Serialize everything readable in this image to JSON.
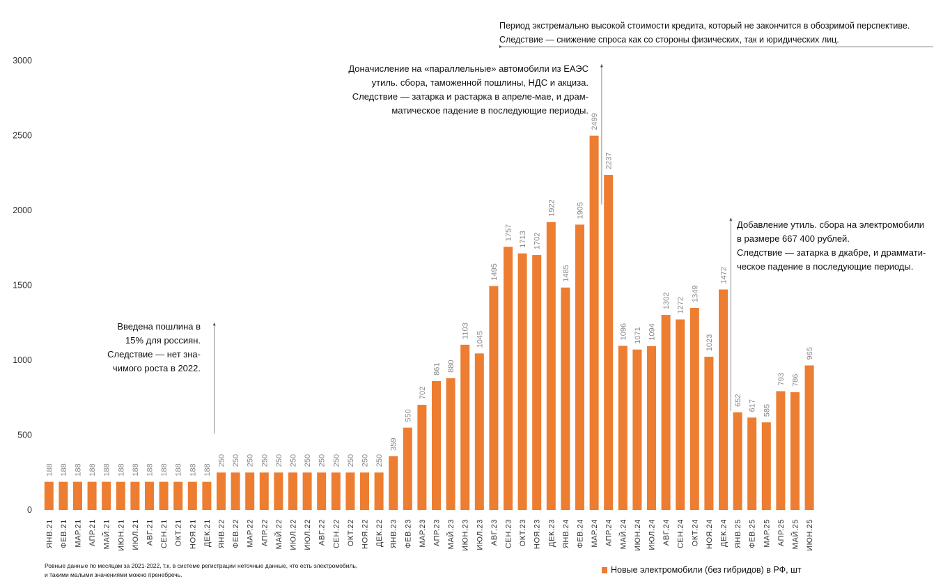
{
  "chart_data": {
    "type": "bar",
    "title": "",
    "xlabel": "",
    "ylabel": "",
    "ylim": [
      0,
      3000
    ],
    "yticks": [
      0,
      500,
      1000,
      1500,
      2000,
      2500,
      3000
    ],
    "grid": false,
    "bar_color": "#ED7D31",
    "categories": [
      "ЯНВ.21",
      "ФЕВ.21",
      "МАР.21",
      "АПР.21",
      "МАЙ.21",
      "ИЮН.21",
      "ИЮЛ.21",
      "АВГ.21",
      "СЕН.21",
      "ОКТ.21",
      "НОЯ.21",
      "ДЕК.21",
      "ЯНВ.22",
      "ФЕВ.22",
      "МАР.22",
      "АПР.22",
      "МАЙ.22",
      "ИЮЛ.22",
      "ИЮЛ.22",
      "АВГ.22",
      "СЕН.22",
      "ОКТ.22",
      "НОЯ.22",
      "ДЕК.22",
      "ЯНВ.23",
      "ФЕВ.23",
      "МАР.23",
      "АПР.23",
      "МАЙ.23",
      "ИЮН.23",
      "ИЮЛ.23",
      "АВГ.23",
      "СЕН.23",
      "ОКТ.23",
      "НОЯ.23",
      "ДЕК.23",
      "ЯНВ.24",
      "ФЕВ.24",
      "МАР.24",
      "АПР.24",
      "МАЙ.24",
      "ИЮН.24",
      "ИЮЛ.24",
      "АВГ.24",
      "СЕН.24",
      "ОКТ.24",
      "НОЯ.24",
      "ДЕК.24",
      "ЯНВ.25",
      "ФЕВ.25",
      "МАР.25",
      "АПР.25",
      "МАЙ.25",
      "ИЮН.25"
    ],
    "series": [
      {
        "name": "Новые электромобили (без гибридов) в РФ, шт",
        "values": [
          188,
          188,
          188,
          188,
          188,
          188,
          188,
          188,
          188,
          188,
          188,
          188,
          250,
          250,
          250,
          250,
          250,
          250,
          250,
          250,
          250,
          250,
          250,
          250,
          359,
          550,
          702,
          861,
          880,
          1103,
          1045,
          1495,
          1757,
          1713,
          1702,
          1922,
          1485,
          1905,
          2499,
          2237,
          1096,
          1071,
          1094,
          1302,
          1272,
          1349,
          1023,
          1472,
          652,
          617,
          585,
          793,
          786,
          965
        ]
      }
    ],
    "legend": "bottom-right",
    "annotations": [
      {
        "id": "a2022",
        "lines": [
          "Введена пошлина в",
          "15% для россиян.",
          "Следствие  — нет зна-",
          "чимого роста в 2022."
        ],
        "at_category_index": 11,
        "from_value": 510,
        "to_value": 1250
      },
      {
        "id": "a2024",
        "lines": [
          "Доначисление на «параллельные» автомобили из ЕАЭС",
          "утиль. сбора, таможенной пошлины, НДС и акциза.",
          "Следствие — затарка и растарка в апреле-мае, и драм-",
          "матическое падение в последующие периоды."
        ],
        "at_category_index": 38,
        "from_value": 2040,
        "to_value": 2975
      },
      {
        "id": "a2025",
        "lines": [
          "Добавление утиль. сбора на электромобили",
          "в размере 667 400 рублей.",
          "Следствие — затарка в дкабре, и драммати-",
          "ческое падение в последующие периоды."
        ],
        "at_category_index": 47,
        "from_value": 660,
        "to_value": 1950
      },
      {
        "id": "atop",
        "lines": [
          "Период экстремально высокой стоимости кредита, который не закончится в обозримой перспективе.",
          "Следствие — снижение спроса как со стороны физических, так и юридических лиц."
        ]
      }
    ]
  },
  "footnote": {
    "line1": "Ровные данные по месяцам за 2021-2022, т.к. в системе регистрации неточные данные, что есть электромобиль,",
    "line2": "и такими малыми значениями можно пренебречь."
  }
}
